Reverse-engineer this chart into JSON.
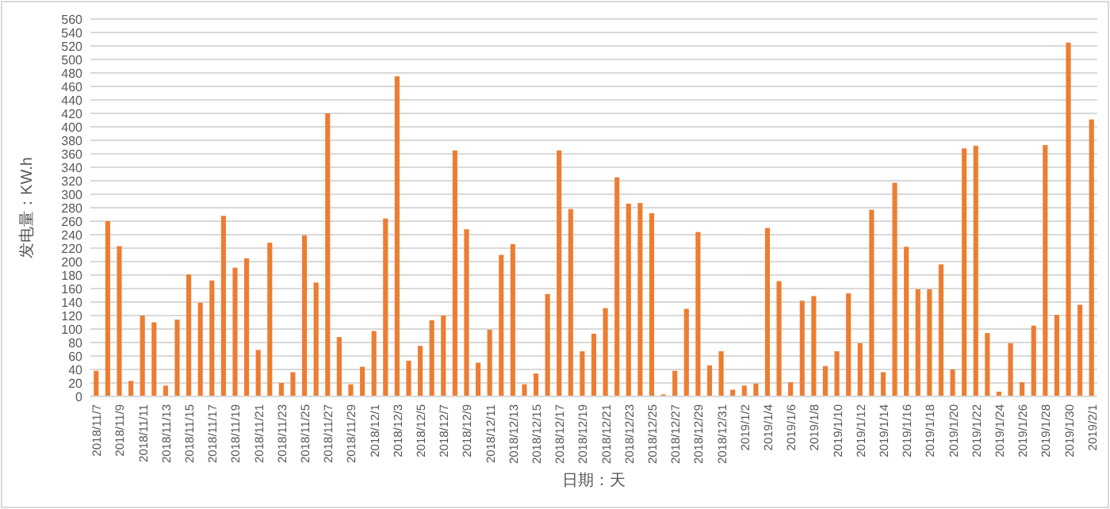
{
  "chart_data": {
    "type": "bar",
    "xlabel": "日期：天",
    "ylabel": "发电量：KW.h",
    "color": "#ed7d31",
    "grid": "y",
    "ylim": [
      0,
      560
    ],
    "yticks": [
      0,
      20,
      40,
      60,
      80,
      100,
      120,
      140,
      160,
      180,
      200,
      220,
      240,
      260,
      280,
      300,
      320,
      340,
      360,
      380,
      400,
      420,
      440,
      460,
      480,
      500,
      520,
      540,
      560
    ],
    "categories": [
      "2018/11/7",
      null,
      "2018/11/9",
      null,
      "2018/11/11",
      null,
      "2018/11/13",
      null,
      "2018/11/15",
      null,
      "2018/11/17",
      null,
      "2018/11/19",
      null,
      "2018/11/21",
      null,
      "2018/11/23",
      null,
      "2018/11/25",
      null,
      "2018/11/27",
      null,
      "2018/11/29",
      null,
      "2018/12/1",
      null,
      "2018/12/3",
      null,
      "2018/12/5",
      null,
      "2018/12/7",
      null,
      "2018/12/9",
      null,
      "2018/12/11",
      null,
      "2018/12/13",
      null,
      "2018/12/15",
      null,
      "2018/12/17",
      null,
      "2018/12/19",
      null,
      "2018/12/21",
      null,
      "2018/12/23",
      null,
      "2018/12/25",
      null,
      "2018/12/27",
      null,
      "2018/12/29",
      null,
      "2018/12/31",
      null,
      "2019/1/2",
      null,
      "2019/1/4",
      null,
      "2019/1/6",
      null,
      "2019/1/8",
      null,
      "2019/1/10",
      null,
      "2019/1/12",
      null,
      "2019/1/14",
      null,
      "2019/1/16",
      null,
      "2019/1/18",
      null,
      "2019/1/20",
      null,
      "2019/1/22",
      null,
      "2019/1/24",
      null,
      "2019/1/26",
      null,
      "2019/1/28",
      null,
      "2019/1/30",
      null,
      "2019/2/1"
    ],
    "values": [
      38,
      260,
      223,
      23,
      120,
      110,
      16,
      114,
      181,
      139,
      172,
      268,
      191,
      205,
      69,
      228,
      20,
      36,
      239,
      169,
      420,
      88,
      18,
      44,
      97,
      264,
      475,
      53,
      75,
      113,
      120,
      365,
      248,
      50,
      99,
      210,
      226,
      18,
      34,
      152,
      365,
      278,
      67,
      93,
      131,
      325,
      286,
      287,
      272,
      3,
      38,
      130,
      244,
      46,
      67,
      10,
      16,
      19,
      250,
      171,
      21,
      142,
      149,
      45,
      67,
      153,
      79,
      277,
      36,
      317,
      222,
      159,
      159,
      196,
      40,
      368,
      372,
      94,
      7,
      79,
      21,
      105,
      373,
      121,
      525,
      136,
      411
    ]
  }
}
